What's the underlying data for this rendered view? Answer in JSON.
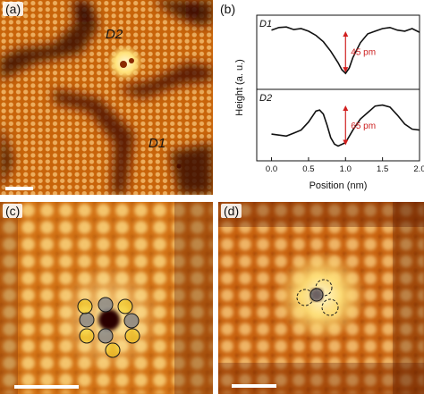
{
  "panels": {
    "a": {
      "label": "(a)",
      "defects": [
        "D2",
        "D1"
      ]
    },
    "b": {
      "label": "(b)"
    },
    "c": {
      "label": "(c)"
    },
    "d": {
      "label": "(d)"
    }
  },
  "colors": {
    "stm_dark": "#2a0700",
    "stm_mid": "#c85d05",
    "stm_bright": "#ffe28a",
    "arrow": "#d11f1f",
    "circle_gray": "#8a8a8a",
    "circle_yellow": "#f4d21c"
  },
  "chart_data": {
    "type": "line",
    "xlabel": "Position (nm)",
    "ylabel": "Height (a. u.)",
    "xlim": [
      -0.2,
      2.0
    ],
    "xticks": [
      "0.0",
      "0.5",
      "1.0",
      "1.5",
      "2.0"
    ],
    "series": [
      {
        "name": "D1",
        "annotation": "45 pm",
        "x": [
          0.0,
          0.1,
          0.2,
          0.3,
          0.4,
          0.5,
          0.6,
          0.7,
          0.8,
          0.9,
          0.95,
          1.0,
          1.05,
          1.1,
          1.2,
          1.3,
          1.4,
          1.5,
          1.6,
          1.7,
          1.8,
          1.9,
          2.0
        ],
        "y": [
          0.92,
          0.97,
          0.98,
          0.93,
          0.95,
          0.9,
          0.82,
          0.7,
          0.52,
          0.3,
          0.17,
          0.1,
          0.2,
          0.4,
          0.68,
          0.85,
          0.9,
          0.95,
          0.97,
          0.92,
          0.9,
          0.95,
          0.88
        ]
      },
      {
        "name": "D2",
        "annotation": "65 pm",
        "x": [
          0.0,
          0.1,
          0.2,
          0.3,
          0.4,
          0.5,
          0.6,
          0.65,
          0.7,
          0.75,
          0.8,
          0.85,
          0.9,
          1.0,
          1.1,
          1.2,
          1.3,
          1.4,
          1.5,
          1.6,
          1.7,
          1.8,
          1.9,
          2.0
        ],
        "y": [
          0.32,
          0.3,
          0.28,
          0.34,
          0.4,
          0.56,
          0.78,
          0.8,
          0.72,
          0.5,
          0.25,
          0.12,
          0.08,
          0.15,
          0.4,
          0.62,
          0.75,
          0.88,
          0.9,
          0.86,
          0.7,
          0.52,
          0.42,
          0.4
        ]
      }
    ]
  }
}
